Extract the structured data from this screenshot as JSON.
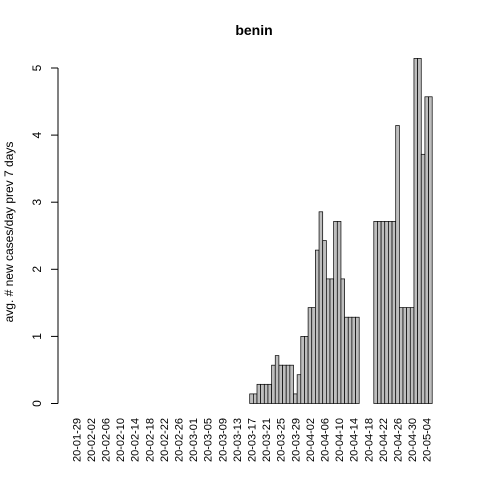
{
  "chart_data": {
    "type": "bar",
    "title": "benin",
    "ylabel": "avg. # new cases/day prev  7  days",
    "xlabel": "",
    "ylim": [
      0,
      5.15
    ],
    "yticks": [
      0,
      1,
      2,
      3,
      4,
      5
    ],
    "grid": false,
    "bar_color": "#bebebe",
    "x_tick_labels": [
      "20-01-29",
      "20-02-02",
      "20-02-06",
      "20-02-10",
      "20-02-14",
      "20-02-18",
      "20-02-22",
      "20-02-26",
      "20-03-01",
      "20-03-05",
      "20-03-09",
      "20-03-13",
      "20-03-17",
      "20-03-21",
      "20-03-25",
      "20-03-29",
      "20-04-02",
      "20-04-06",
      "20-04-10",
      "20-04-14",
      "20-04-18",
      "20-04-22",
      "20-04-26",
      "20-04-30",
      "20-05-04"
    ],
    "categories": [
      "20-01-29",
      "20-01-30",
      "20-01-31",
      "20-02-01",
      "20-02-02",
      "20-02-03",
      "20-02-04",
      "20-02-05",
      "20-02-06",
      "20-02-07",
      "20-02-08",
      "20-02-09",
      "20-02-10",
      "20-02-11",
      "20-02-12",
      "20-02-13",
      "20-02-14",
      "20-02-15",
      "20-02-16",
      "20-02-17",
      "20-02-18",
      "20-02-19",
      "20-02-20",
      "20-02-21",
      "20-02-22",
      "20-02-23",
      "20-02-24",
      "20-02-25",
      "20-02-26",
      "20-02-27",
      "20-02-28",
      "20-02-29",
      "20-03-01",
      "20-03-02",
      "20-03-03",
      "20-03-04",
      "20-03-05",
      "20-03-06",
      "20-03-07",
      "20-03-08",
      "20-03-09",
      "20-03-10",
      "20-03-11",
      "20-03-12",
      "20-03-13",
      "20-03-14",
      "20-03-15",
      "20-03-16",
      "20-03-17",
      "20-03-18",
      "20-03-19",
      "20-03-20",
      "20-03-21",
      "20-03-22",
      "20-03-23",
      "20-03-24",
      "20-03-25",
      "20-03-26",
      "20-03-27",
      "20-03-28",
      "20-03-29",
      "20-03-30",
      "20-03-31",
      "20-04-01",
      "20-04-02",
      "20-04-03",
      "20-04-04",
      "20-04-05",
      "20-04-06",
      "20-04-07",
      "20-04-08",
      "20-04-09",
      "20-04-10",
      "20-04-11",
      "20-04-12",
      "20-04-13",
      "20-04-14",
      "20-04-15",
      "20-04-16",
      "20-04-17",
      "20-04-18",
      "20-04-19",
      "20-04-20",
      "20-04-21",
      "20-04-22",
      "20-04-23",
      "20-04-24",
      "20-04-25",
      "20-04-26",
      "20-04-27",
      "20-04-28",
      "20-04-29",
      "20-04-30",
      "20-05-01",
      "20-05-02",
      "20-05-03",
      "20-05-04",
      "20-05-05"
    ],
    "values": [
      0,
      0,
      0,
      0,
      0,
      0,
      0,
      0,
      0,
      0,
      0,
      0,
      0,
      0,
      0,
      0,
      0,
      0,
      0,
      0,
      0,
      0,
      0,
      0,
      0,
      0,
      0,
      0,
      0,
      0,
      0,
      0,
      0,
      0,
      0,
      0,
      0,
      0,
      0,
      0,
      0,
      0,
      0,
      0,
      0,
      0,
      0,
      0,
      0.143,
      0.143,
      0.286,
      0.286,
      0.286,
      0.286,
      0.571,
      0.714,
      0.571,
      0.571,
      0.571,
      0.571,
      0.143,
      0.429,
      1.0,
      1.0,
      1.429,
      1.429,
      2.286,
      2.857,
      2.429,
      1.857,
      1.857,
      2.714,
      2.714,
      1.857,
      1.286,
      1.286,
      1.286,
      1.286,
      null,
      null,
      null,
      null,
      2.714,
      2.714,
      2.714,
      2.714,
      2.714,
      2.714,
      4.143,
      1.429,
      1.429,
      1.429,
      1.429,
      5.143,
      5.143,
      3.714,
      4.571,
      4.571
    ]
  }
}
